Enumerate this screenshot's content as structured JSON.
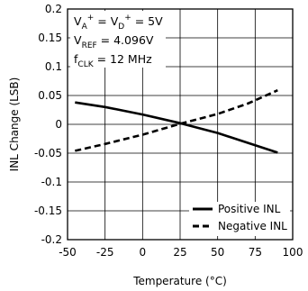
{
  "chart_data": {
    "type": "line",
    "xlabel": "Temperature (°C)",
    "ylabel": "INL Change (LSB)",
    "xlim": [
      -50,
      100
    ],
    "ylim": [
      -0.2,
      0.2
    ],
    "x_ticks": [
      -50,
      -25,
      0,
      25,
      50,
      75,
      100
    ],
    "x_tick_labels": [
      "-50",
      "-25",
      "0",
      "25",
      "50",
      "75",
      "100"
    ],
    "y_ticks": [
      -0.2,
      -0.15,
      -0.1,
      -0.05,
      0,
      0.05,
      0.1,
      0.15,
      0.2
    ],
    "y_tick_labels": [
      "-0.2",
      "-0.15",
      "-0.1",
      "-0.05",
      "0",
      "0.05",
      "0.1",
      "0.15",
      "0.2"
    ],
    "grid": true,
    "annotations": {
      "line1": {
        "base": "V",
        "sub": "A",
        "sup": "+",
        "mid": " = V",
        "sub2": "D",
        "sup2": "+",
        "tail": " = 5V"
      },
      "line2": {
        "base": "V",
        "sub": "REF",
        "tail": " = 4.096V"
      },
      "line3": {
        "base": "f",
        "sub": "CLK",
        "tail": " = 12 MHz"
      }
    },
    "legend_position": "bottom-right",
    "series": [
      {
        "name": "Positive INL",
        "style": "solid",
        "x": [
          -45,
          -25,
          0,
          25,
          50,
          70,
          90
        ],
        "y": [
          0.038,
          0.03,
          0.017,
          0.002,
          -0.015,
          -0.032,
          -0.049
        ]
      },
      {
        "name": "Negative INL",
        "style": "dashed",
        "x": [
          -45,
          -25,
          0,
          25,
          50,
          70,
          90
        ],
        "y": [
          -0.046,
          -0.034,
          -0.018,
          0.001,
          0.018,
          0.036,
          0.059
        ]
      }
    ]
  }
}
